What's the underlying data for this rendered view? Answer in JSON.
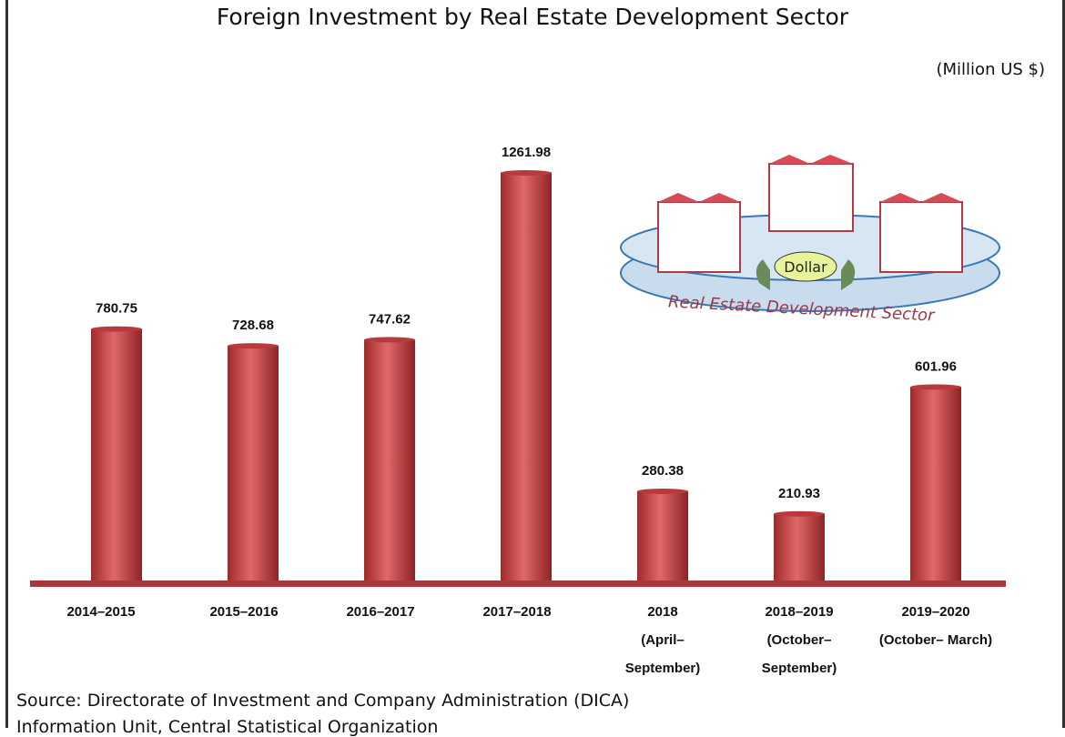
{
  "chart_data": {
    "type": "bar",
    "title": "Foreign Investment by Real Estate Development Sector",
    "unit": "(Million US $)",
    "categories": [
      [
        "2014–2015"
      ],
      [
        "2015–2016"
      ],
      [
        "2016–2017"
      ],
      [
        "2017–2018"
      ],
      [
        "2018",
        "(April–",
        "September)"
      ],
      [
        "2018–2019",
        "(October–",
        "September)"
      ],
      [
        "2019–2020",
        "(October– March)"
      ]
    ],
    "values": [
      780.75,
      728.68,
      747.62,
      1261.98,
      280.38,
      210.93,
      601.96
    ],
    "value_labels": [
      "780.75",
      "728.68",
      "747.62",
      "1261.98",
      "280.38",
      "210.93",
      "601.96"
    ],
    "ylim": [
      0,
      1300
    ],
    "bar_color": "#c9484a"
  },
  "illustration": {
    "bag_label": "Dollar",
    "platform_label": "Real Estate Development Sector"
  },
  "footer": {
    "source": "Source:  Directorate of Investment and Company Administration (DICA)",
    "info": "Information Unit,  Central Statistical Organization"
  }
}
